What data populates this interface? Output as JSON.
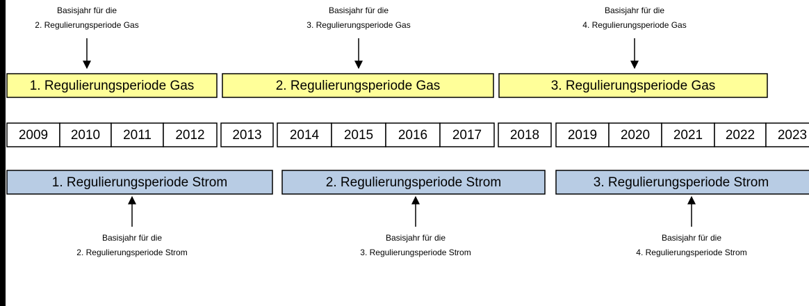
{
  "gas_annotations": [
    [
      "Basisjahr für die",
      "2. Regulierungsperiode Gas"
    ],
    [
      "Basisjahr für die",
      "3. Regulierungsperiode Gas"
    ],
    [
      "Basisjahr für die",
      "4. Regulierungsperiode Gas"
    ]
  ],
  "gas_periods": [
    "1. Regulierungsperiode Gas",
    "2. Regulierungsperiode Gas",
    "3. Regulierungsperiode Gas"
  ],
  "years": [
    "2009",
    "2010",
    "2011",
    "2012",
    "2013",
    "2014",
    "2015",
    "2016",
    "2017",
    "2018",
    "2019",
    "2020",
    "2021",
    "2022",
    "2023"
  ],
  "strom_periods": [
    "1. Regulierungsperiode Strom",
    "2. Regulierungsperiode Strom",
    "3. Regulierungsperiode Strom"
  ],
  "strom_annotations": [
    [
      "Basisjahr für die",
      "2. Regulierungsperiode Strom"
    ],
    [
      "Basisjahr für die",
      "3. Regulierungsperiode Strom"
    ],
    [
      "Basisjahr für die",
      "4. Regulierungsperiode Strom"
    ]
  ]
}
